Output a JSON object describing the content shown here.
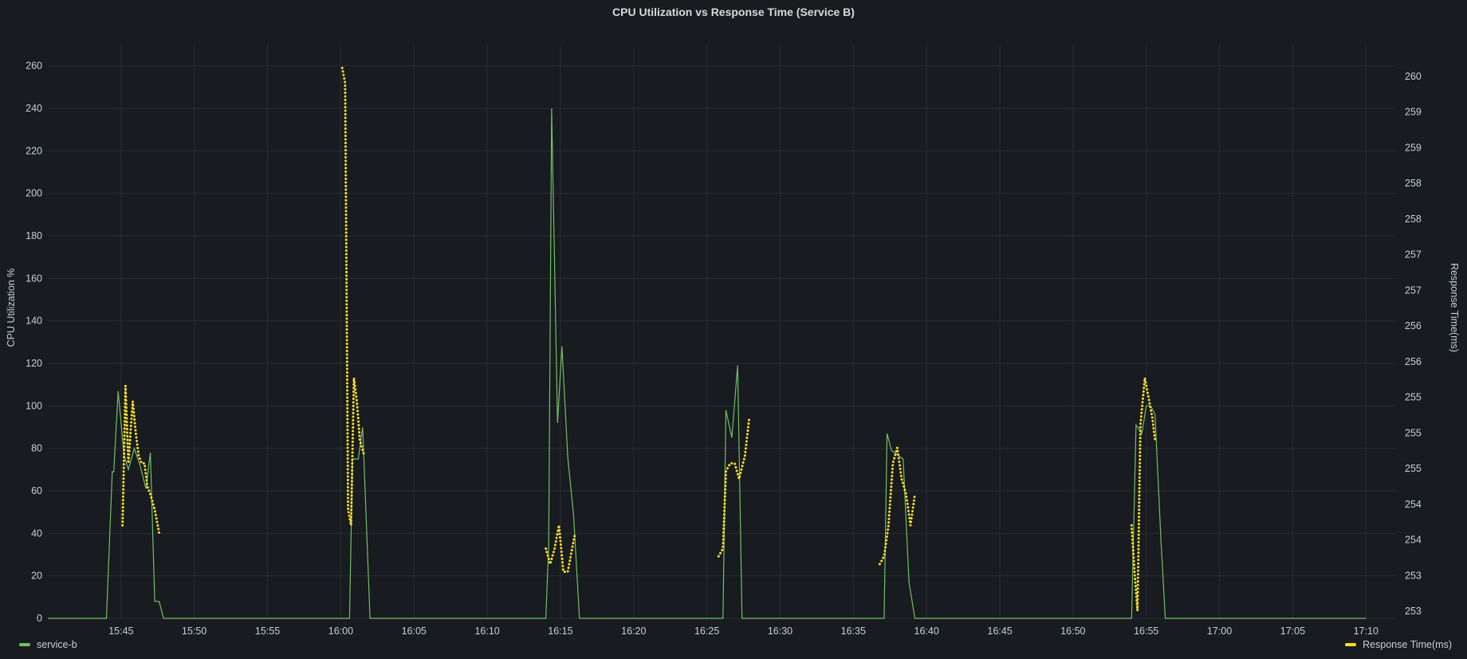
{
  "panel": {
    "title": "CPU Utilization vs Response Time (Service B)"
  },
  "colors": {
    "background": "#181b1f",
    "grid": "#2a2d33",
    "cpu": "#73bf69",
    "response": "#fade2a",
    "text": "#c7d0d9"
  },
  "chart_data": {
    "type": "line",
    "grid": true,
    "legend_placement": "bottom",
    "x_axis": {
      "type": "time",
      "start": "15:40",
      "end": "17:12",
      "ticks": [
        "15:45",
        "15:50",
        "15:55",
        "16:00",
        "16:05",
        "16:10",
        "16:15",
        "16:20",
        "16:25",
        "16:30",
        "16:35",
        "16:40",
        "16:45",
        "16:50",
        "16:55",
        "17:00",
        "17:05",
        "17:10"
      ]
    },
    "y_left": {
      "label": "CPU Utilization %",
      "range": [
        0,
        270
      ],
      "ticks": [
        "0",
        "20",
        "40",
        "60",
        "80",
        "100",
        "120",
        "140",
        "160",
        "180",
        "200",
        "220",
        "240",
        "260"
      ]
    },
    "y_right": {
      "label": "Response Time(ms)",
      "range": [
        252.9,
        260.3
      ],
      "ticks": [
        "253",
        "253",
        "254",
        "254",
        "255",
        "255",
        "255",
        "256",
        "256",
        "257",
        "257",
        "258",
        "258",
        "259",
        "259",
        "260"
      ]
    },
    "series": [
      {
        "name": "service-b",
        "axis": "left",
        "style": "solid",
        "x": [
          "15:40",
          "15:44",
          "15:44.4",
          "15:44.5",
          "15:44.8",
          "15:45.2",
          "15:45.5",
          "15:45.9",
          "15:46.3",
          "15:46.7",
          "15:47",
          "15:47.3",
          "15:47.6",
          "15:47.9",
          "15:48.3",
          "15:48.6",
          "15:49",
          "16:00.6",
          "16:00.8",
          "16:01.2",
          "16:01.5",
          "16:02",
          "16:14",
          "16:14.2",
          "16:14.4",
          "16:14.8",
          "16:15.1",
          "16:15.5",
          "16:15.9",
          "16:16.3",
          "16:16.8",
          "16:26.1",
          "16:26.3",
          "16:26.7",
          "16:27.1",
          "16:27.4",
          "16:27.8",
          "16:28.1",
          "16:28.4",
          "16:37.1",
          "16:37.3",
          "16:37.6",
          "16:38",
          "16:38.4",
          "16:38.8",
          "16:39.2",
          "16:39.6",
          "16:40",
          "16:54",
          "16:54.3",
          "16:54.7",
          "16:55",
          "16:55.3",
          "16:55.6",
          "16:56",
          "16:56.3",
          "16:56.6",
          "17:10"
        ],
        "y": [
          0,
          0,
          69,
          69,
          107,
          77,
          70,
          80,
          72,
          61,
          78,
          8,
          8,
          0,
          0,
          0,
          0,
          0,
          75,
          75,
          90,
          0,
          0,
          34,
          240,
          92,
          128,
          76,
          48,
          0,
          0,
          0,
          98,
          85,
          119,
          0,
          0,
          0,
          0,
          0,
          87,
          79,
          77,
          75,
          17,
          0,
          0,
          0,
          0,
          91,
          87,
          100,
          100,
          96,
          37,
          0,
          0,
          0
        ]
      },
      {
        "name": "Response Time(ms)",
        "axis": "right",
        "style": "dotted",
        "segments": [
          {
            "x": [
              "15:45.1",
              "15:45.3",
              "15:45.5",
              "15:45.8",
              "15:46",
              "15:46.2",
              "15:46.4",
              "15:46.6",
              "15:46.8",
              "15:47",
              "15:47.3",
              "15:47.6",
              "15:47.8"
            ],
            "y": [
              254.1,
              255.9,
              254.9,
              255.7,
              255.3,
              255.0,
              254.9,
              254.9,
              254.6,
              254.5,
              254.3,
              254.0,
              254.0
            ]
          },
          {
            "x": [
              "16:00.1",
              "16:00.3",
              "16:00.5",
              "16:00.7",
              "16:00.9",
              "16:01.1",
              "16:01.3",
              "16:01.6"
            ],
            "y": [
              260.0,
              259.8,
              254.3,
              254.1,
              256.0,
              255.7,
              255.2,
              255.0
            ]
          },
          {
            "x": [
              "16:14",
              "16:14.3",
              "16:14.6",
              "16:14.9",
              "16:15.2",
              "16:15.5",
              "16:15.8",
              "16:16"
            ],
            "y": [
              253.8,
              253.6,
              253.8,
              254.1,
              253.5,
              253.5,
              253.8,
              254.0
            ]
          },
          {
            "x": [
              "16:25.8",
              "16:26.1",
              "16:26.3",
              "16:26.6",
              "16:26.9",
              "16:27.2",
              "16:27.6",
              "16:27.9"
            ],
            "y": [
              253.7,
              253.8,
              254.8,
              254.9,
              254.9,
              254.7,
              255.0,
              255.5
            ]
          },
          {
            "x": [
              "16:36.8",
              "16:37.1",
              "16:37.4",
              "16:37.7",
              "16:38",
              "16:38.3",
              "16:38.6",
              "16:38.9",
              "16:39.2"
            ],
            "y": [
              253.6,
              253.7,
              254.1,
              254.9,
              255.1,
              254.7,
              254.5,
              254.1,
              254.5
            ]
          },
          {
            "x": [
              "16:54",
              "16:54.2",
              "16:54.4",
              "16:54.6",
              "16:54.9",
              "16:55.1",
              "16:55.4",
              "16:55.6"
            ],
            "y": [
              254.1,
              253.5,
              253.0,
              255.4,
              256.0,
              255.8,
              255.5,
              255.2
            ]
          }
        ]
      }
    ]
  }
}
